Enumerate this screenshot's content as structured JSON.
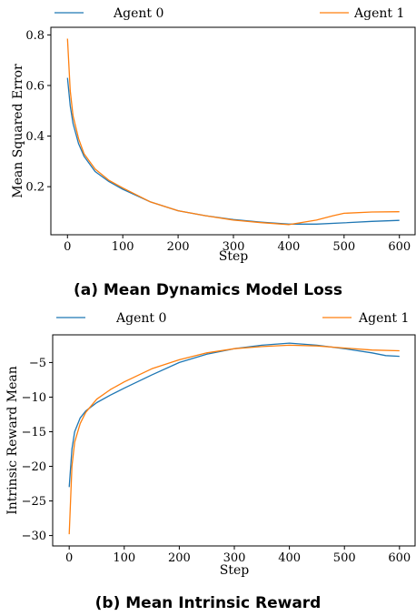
{
  "chart_data": [
    {
      "type": "line",
      "caption": "(a) Mean Dynamics Model Loss",
      "xlabel": "Step",
      "ylabel": "Mean Squared Error",
      "xlim": [
        -30,
        630
      ],
      "ylim": [
        0.01,
        0.83
      ],
      "xticks": [
        0,
        100,
        200,
        300,
        400,
        500,
        600
      ],
      "yticks": [
        0.2,
        0.4,
        0.6,
        0.8
      ],
      "ytick_labels": [
        "0.2",
        "0.4",
        "0.6",
        "0.8"
      ],
      "legend": "top, above plot",
      "grid": false,
      "series": [
        {
          "name": "Agent 0",
          "color": "#1f77b4",
          "x": [
            0,
            5,
            10,
            20,
            30,
            50,
            75,
            100,
            150,
            200,
            250,
            300,
            350,
            400,
            450,
            500,
            550,
            600
          ],
          "y": [
            0.63,
            0.52,
            0.45,
            0.37,
            0.32,
            0.26,
            0.22,
            0.19,
            0.14,
            0.105,
            0.085,
            0.07,
            0.06,
            0.052,
            0.052,
            0.057,
            0.063,
            0.067
          ]
        },
        {
          "name": "Agent 1",
          "color": "#ff7f0e",
          "x": [
            0,
            5,
            10,
            20,
            30,
            50,
            75,
            100,
            150,
            200,
            250,
            300,
            350,
            400,
            450,
            480,
            500,
            550,
            600
          ],
          "y": [
            0.785,
            0.58,
            0.48,
            0.39,
            0.33,
            0.27,
            0.225,
            0.195,
            0.14,
            0.105,
            0.085,
            0.068,
            0.058,
            0.05,
            0.068,
            0.085,
            0.095,
            0.1,
            0.101
          ]
        }
      ]
    },
    {
      "type": "line",
      "caption": "(b) Mean Intrinsic Reward",
      "xlabel": "Step",
      "ylabel": "Intrinsic Reward Mean",
      "xlim": [
        -30,
        630
      ],
      "ylim": [
        -31.5,
        -1.0
      ],
      "xticks": [
        0,
        100,
        200,
        300,
        400,
        500,
        600
      ],
      "yticks": [
        -30,
        -25,
        -20,
        -15,
        -10,
        -5
      ],
      "ytick_labels": [
        "−30",
        "−25",
        "−20",
        "−15",
        "−10",
        "−5"
      ],
      "legend": "top, above plot",
      "grid": false,
      "series": [
        {
          "name": "Agent 0",
          "color": "#1f77b4",
          "x": [
            0,
            5,
            10,
            20,
            30,
            50,
            75,
            100,
            150,
            200,
            250,
            300,
            350,
            400,
            450,
            500,
            550,
            575,
            600
          ],
          "y": [
            -23,
            -17.5,
            -15,
            -13,
            -12,
            -10.8,
            -9.7,
            -8.7,
            -6.8,
            -5.0,
            -3.8,
            -3.0,
            -2.5,
            -2.2,
            -2.5,
            -3.0,
            -3.6,
            -4.0,
            -4.1
          ]
        },
        {
          "name": "Agent 1",
          "color": "#ff7f0e",
          "x": [
            0,
            5,
            10,
            20,
            30,
            50,
            75,
            100,
            150,
            200,
            250,
            300,
            350,
            400,
            450,
            500,
            550,
            600
          ],
          "y": [
            -29.8,
            -20,
            -16.5,
            -13.8,
            -12.2,
            -10.3,
            -8.9,
            -7.8,
            -5.9,
            -4.6,
            -3.6,
            -3.0,
            -2.7,
            -2.5,
            -2.6,
            -2.9,
            -3.2,
            -3.3
          ]
        }
      ]
    }
  ]
}
